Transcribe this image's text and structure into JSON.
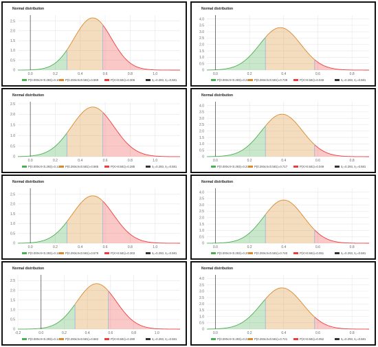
{
  "colors": {
    "green": "#4caf50",
    "green_fill": "rgba(76,175,80,0.30)",
    "orange": "#d98a2b",
    "orange_fill": "rgba(217,138,43,0.30)",
    "red": "#ef3b3b",
    "red_fill": "rgba(239,59,59,0.28)",
    "black": "#333333",
    "grid": "#e6e6e6",
    "marker": "#9fb7d6"
  },
  "chart_data": [
    {
      "type": "area",
      "title": "Normal distribution",
      "mean": 0.5,
      "sd": 0.15,
      "xlim": [
        -0.1,
        1.2
      ],
      "ylim": [
        0,
        2.8
      ],
      "xticks": [
        "0.0",
        "0.2",
        "0.4",
        "0.6",
        "0.8",
        "1.0"
      ],
      "xtick_values": [
        0.0,
        0.2,
        0.4,
        0.6,
        0.8,
        1.0
      ],
      "yticks": [
        "0",
        "0.5",
        "1.0",
        "1.5",
        "2.0",
        "2.5"
      ],
      "ytick_values": [
        0,
        0.5,
        1.0,
        1.5,
        2.0,
        2.5
      ],
      "x1": 0.293,
      "x2": 0.581,
      "legend": [
        "P(0.000≤X<0.293)=0.104",
        "P(0.293≤X≤0.581)=0.589",
        "P(X>0.581)=0.306",
        "x̄₁=0.293, x̄₂=0.581"
      ]
    },
    {
      "type": "area",
      "title": "Normal distribution",
      "mean": 0.38,
      "sd": 0.12,
      "xlim": [
        -0.05,
        0.9
      ],
      "ylim": [
        0,
        4.3
      ],
      "xticks": [
        "0.0",
        "0.2",
        "0.4",
        "0.6",
        "0.8"
      ],
      "xtick_values": [
        0.0,
        0.2,
        0.4,
        0.6,
        0.8
      ],
      "yticks": [
        "0",
        "0.5",
        "1.0",
        "1.5",
        "2.0",
        "2.5",
        "3.0",
        "3.5",
        "4.0"
      ],
      "ytick_values": [
        0,
        0.5,
        1.0,
        1.5,
        2.0,
        2.5,
        3.0,
        3.5,
        4.0
      ],
      "x1": 0.293,
      "x2": 0.581,
      "legend": [
        "P(0.000≤X<0.293)=0.213",
        "P(0.293≤X≤0.581)=0.738",
        "P(X>0.581)=0.049",
        "x̄₁=0.293, x̄₂=0.581"
      ]
    },
    {
      "type": "area",
      "title": "Normal distribution",
      "mean": 0.5,
      "sd": 0.17,
      "xlim": [
        -0.1,
        1.2
      ],
      "ylim": [
        0,
        2.6
      ],
      "xticks": [
        "0.0",
        "0.2",
        "0.4",
        "0.6",
        "0.8",
        "1.0"
      ],
      "xtick_values": [
        0.0,
        0.2,
        0.4,
        0.6,
        0.8,
        1.0
      ],
      "yticks": [
        "0",
        "0.5",
        "1.0",
        "1.5",
        "2.0",
        "2.5"
      ],
      "ytick_values": [
        0,
        0.5,
        1.0,
        1.5,
        2.0,
        2.5
      ],
      "x1": 0.293,
      "x2": 0.581,
      "legend": [
        "P(0.000≤X<0.293)=0.128",
        "P(0.293≤X≤0.581)=0.585",
        "P(X>0.581)=0.285",
        "x̄₁=0.293, x̄₂=0.581"
      ]
    },
    {
      "type": "area",
      "title": "Normal distribution",
      "mean": 0.39,
      "sd": 0.12,
      "xlim": [
        -0.05,
        0.9
      ],
      "ylim": [
        0,
        4.3
      ],
      "xticks": [
        "0.0",
        "0.2",
        "0.4",
        "0.6",
        "0.8"
      ],
      "xtick_values": [
        0.0,
        0.2,
        0.4,
        0.6,
        0.8
      ],
      "yticks": [
        "0",
        "0.5",
        "1.0",
        "1.5",
        "2.0",
        "2.5",
        "3.0",
        "3.5",
        "4.0"
      ],
      "ytick_values": [
        0,
        0.5,
        1.0,
        1.5,
        2.0,
        2.5,
        3.0,
        3.5,
        4.0
      ],
      "x1": 0.293,
      "x2": 0.581,
      "legend": [
        "P(0.000≤X<0.293)=0.233",
        "P(0.293≤X≤0.581)=0.717",
        "P(X>0.581)=0.049",
        "x̄₁=0.293, x̄₂=0.581"
      ]
    },
    {
      "type": "area",
      "title": "Normal distribution",
      "mean": 0.5,
      "sd": 0.165,
      "xlim": [
        -0.1,
        1.2
      ],
      "ylim": [
        0,
        2.8
      ],
      "xticks": [
        "0.0",
        "0.2",
        "0.4",
        "0.6",
        "0.8",
        "1.0"
      ],
      "xtick_values": [
        0.0,
        0.2,
        0.4,
        0.6,
        0.8,
        1.0
      ],
      "yticks": [
        "0",
        "0.5",
        "1.0",
        "1.5",
        "2.0",
        "2.5"
      ],
      "ytick_values": [
        0,
        0.5,
        1.0,
        1.5,
        2.0,
        2.5
      ],
      "x1": 0.293,
      "x2": 0.581,
      "legend": [
        "P(0.000≤X<0.293)=0.118",
        "P(0.293≤X≤0.581)=0.579",
        "P(X>0.581)=0.303",
        "x̄₁=0.293, x̄₂=0.581"
      ]
    },
    {
      "type": "area",
      "title": "Normal distribution",
      "mean": 0.4,
      "sd": 0.118,
      "xlim": [
        -0.05,
        0.9
      ],
      "ylim": [
        0,
        4.3
      ],
      "xticks": [
        "0.0",
        "0.2",
        "0.4",
        "0.6",
        "0.8"
      ],
      "xtick_values": [
        0.0,
        0.2,
        0.4,
        0.6,
        0.8
      ],
      "yticks": [
        "0",
        "0.5",
        "1.0",
        "1.5",
        "2.0",
        "2.5",
        "3.0",
        "3.5",
        "4.0"
      ],
      "ytick_values": [
        0,
        0.5,
        1.0,
        1.5,
        2.0,
        2.5,
        3.0,
        3.5,
        4.0
      ],
      "x1": 0.293,
      "x2": 0.581,
      "legend": [
        "P(0.000≤X<0.293)=0.208",
        "P(0.293≤X≤0.581)=0.740",
        "P(X>0.581)=0.051",
        "x̄₁=0.293, x̄₂=0.581"
      ]
    },
    {
      "type": "area",
      "title": "Normal distribution",
      "mean": 0.48,
      "sd": 0.17,
      "xlim": [
        -0.2,
        1.2
      ],
      "ylim": [
        0,
        2.8
      ],
      "xticks": [
        "-0.2",
        "0.0",
        "0.2",
        "0.4",
        "0.6",
        "0.8",
        "1.0"
      ],
      "xtick_values": [
        -0.2,
        0.0,
        0.2,
        0.4,
        0.6,
        0.8,
        1.0
      ],
      "yticks": [
        "0",
        "0.5",
        "1.0",
        "1.5",
        "2.0",
        "2.5"
      ],
      "ytick_values": [
        0,
        0.5,
        1.0,
        1.5,
        2.0,
        2.5
      ],
      "x1": 0.293,
      "x2": 0.581,
      "legend": [
        "P(0.000≤X<0.293)=0.135",
        "P(0.293≤X≤0.581)=0.582",
        "P(X>0.581)=0.280",
        "x̄₁=0.293, x̄₂=0.581"
      ]
    },
    {
      "type": "area",
      "title": "Normal distribution",
      "mean": 0.39,
      "sd": 0.122,
      "xlim": [
        -0.05,
        0.9
      ],
      "ylim": [
        0,
        4.3
      ],
      "xticks": [
        "0.0",
        "0.2",
        "0.4",
        "0.6",
        "0.8"
      ],
      "xtick_values": [
        0.0,
        0.2,
        0.4,
        0.6,
        0.8
      ],
      "yticks": [
        "0",
        "0.5",
        "1.0",
        "1.5",
        "2.0",
        "2.5",
        "3.0",
        "3.5",
        "4.0"
      ],
      "ytick_values": [
        0,
        0.5,
        1.0,
        1.5,
        2.0,
        2.5,
        3.0,
        3.5,
        4.0
      ],
      "x1": 0.293,
      "x2": 0.581,
      "legend": [
        "P(0.000≤X<0.293)=0.226",
        "P(0.293≤X≤0.581)=0.721",
        "P(X>0.581)=0.052",
        "x̄₁=0.293, x̄₂=0.581"
      ]
    }
  ]
}
